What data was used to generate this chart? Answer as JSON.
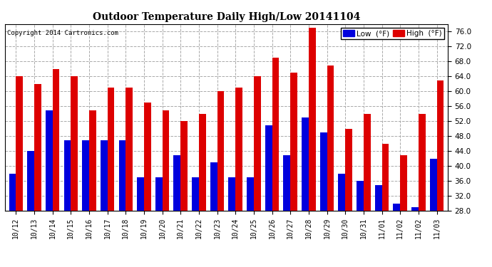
{
  "title": "Outdoor Temperature Daily High/Low 20141104",
  "copyright": "Copyright 2014 Cartronics.com",
  "legend_low": "Low  (°F)",
  "legend_high": "High  (°F)",
  "low_color": "#0000dd",
  "high_color": "#dd0000",
  "ylim": [
    28.0,
    78.0
  ],
  "yticks": [
    28.0,
    32.0,
    36.0,
    40.0,
    44.0,
    48.0,
    52.0,
    56.0,
    60.0,
    64.0,
    68.0,
    72.0,
    76.0
  ],
  "background_color": "#ffffff",
  "plot_bg_color": "#ffffff",
  "categories": [
    "10/12",
    "10/13",
    "10/14",
    "10/15",
    "10/16",
    "10/17",
    "10/18",
    "10/19",
    "10/20",
    "10/21",
    "10/22",
    "10/23",
    "10/24",
    "10/25",
    "10/26",
    "10/27",
    "10/28",
    "10/29",
    "10/30",
    "10/31",
    "11/01",
    "11/02",
    "11/02",
    "11/03"
  ],
  "low_values": [
    38,
    44,
    55,
    47,
    47,
    47,
    47,
    37,
    37,
    43,
    37,
    41,
    37,
    37,
    51,
    43,
    53,
    49,
    38,
    36,
    35,
    30,
    29,
    42
  ],
  "high_values": [
    64,
    62,
    66,
    64,
    55,
    61,
    61,
    57,
    55,
    52,
    54,
    60,
    61,
    64,
    69,
    65,
    77,
    67,
    50,
    54,
    46,
    43,
    54,
    63
  ],
  "bar_width": 0.38,
  "title_fontsize": 10,
  "tick_fontsize": 7,
  "ytick_fontsize": 7.5
}
